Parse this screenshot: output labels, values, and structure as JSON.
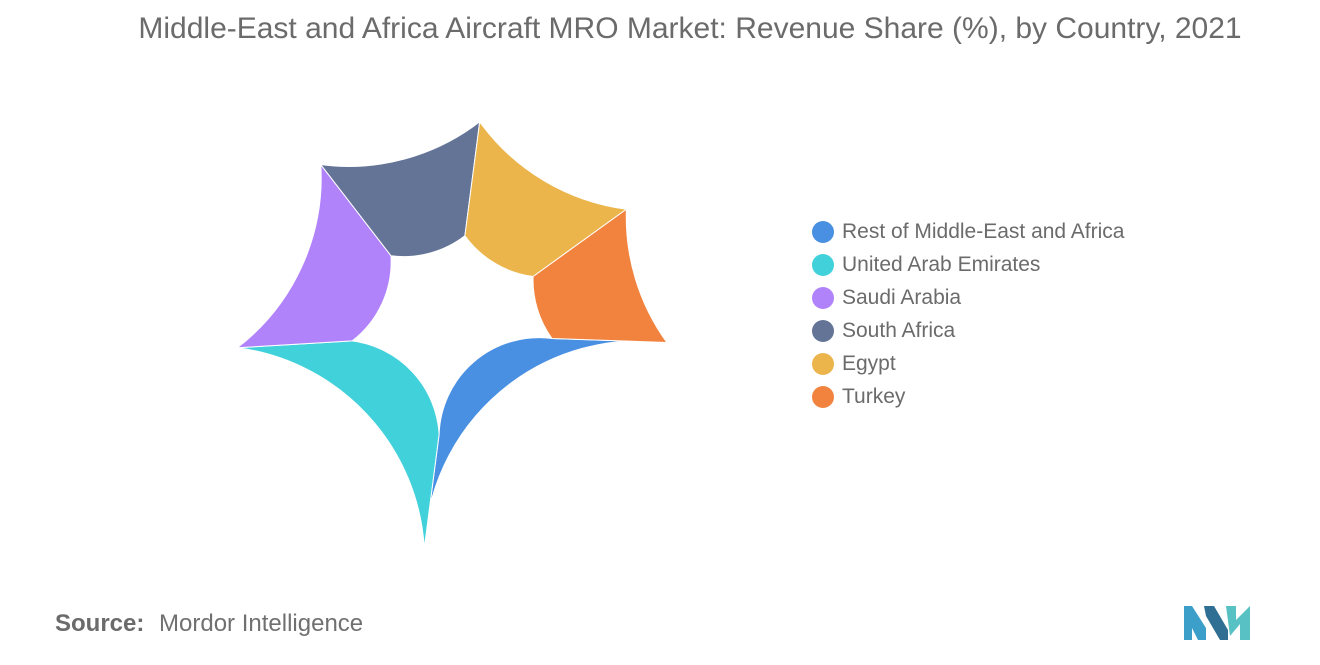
{
  "chart_data": {
    "type": "pie",
    "subtype": "donut",
    "title": "Middle-East and Africa Aircraft MRO Market: Revenue Share (%), by Country, 2021",
    "categories": [
      "Rest of Middle-East and Africa",
      "United Arab Emirates",
      "Saudi Arabia",
      "South Africa",
      "Egypt",
      "Turkey"
    ],
    "values": [
      26.5,
      22.0,
      15.5,
      12.5,
      13.0,
      10.5
    ],
    "colors": [
      "#4a90e2",
      "#41d1db",
      "#b183fb",
      "#647497",
      "#ebb54b",
      "#f2833e"
    ],
    "legend_position": "right",
    "start_angle_deg": -2,
    "direction": "counterclockwise"
  },
  "source": {
    "label": "Source:",
    "text": "Mordor Intelligence"
  },
  "logo": {
    "colors": [
      "#3c9fc9",
      "#2f6f93",
      "#58c1c4"
    ]
  }
}
